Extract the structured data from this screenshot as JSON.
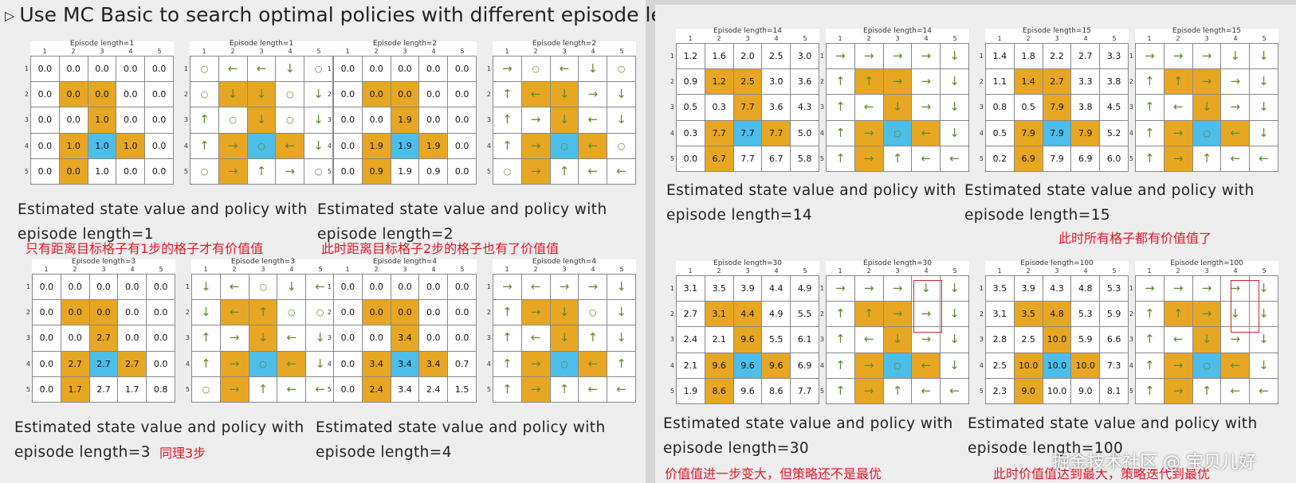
{
  "heading": {
    "bullet": "▷",
    "text": "Use MC Basic to search optimal policies with different episode lengths."
  },
  "axis_labels": [
    "1",
    "2",
    "3",
    "4",
    "5"
  ],
  "grid_layout": {
    "forbidden_cells": [
      [
        1,
        1
      ],
      [
        1,
        2
      ],
      [
        2,
        2
      ],
      [
        3,
        1
      ],
      [
        3,
        3
      ],
      [
        4,
        1
      ]
    ],
    "target_cell": [
      3,
      2
    ]
  },
  "panels": [
    {
      "id": "len1",
      "value_title": "Episode length=1",
      "policy_title": "Episode length=1",
      "values": [
        [
          "0.0",
          "0.0",
          "0.0",
          "0.0",
          "0.0"
        ],
        [
          "0.0",
          "0.0",
          "0.0",
          "0.0",
          "0.0"
        ],
        [
          "0.0",
          "0.0",
          "1.0",
          "0.0",
          "0.0"
        ],
        [
          "0.0",
          "1.0",
          "1.0",
          "1.0",
          "0.0"
        ],
        [
          "0.0",
          "0.0",
          "1.0",
          "0.0",
          "0.0"
        ]
      ],
      "policy": [
        [
          "o",
          "l",
          "l",
          "d",
          "o"
        ],
        [
          "o",
          "d",
          "d",
          "o",
          "d"
        ],
        [
          "u",
          "o",
          "d",
          "o",
          "d"
        ],
        [
          "u",
          "r",
          "o",
          "l",
          "d"
        ],
        [
          "o",
          "r",
          "u",
          "r",
          "o"
        ]
      ],
      "caption": "Estimated state value and policy with episode length=1",
      "note": "只有距离目标格子有1步的格子才有价值值"
    },
    {
      "id": "len2",
      "value_title": "Episode length=2",
      "policy_title": "Episode length=2",
      "values": [
        [
          "0.0",
          "0.0",
          "0.0",
          "0.0",
          "0.0"
        ],
        [
          "0.0",
          "0.0",
          "0.0",
          "0.0",
          "0.0"
        ],
        [
          "0.0",
          "0.0",
          "1.9",
          "0.0",
          "0.0"
        ],
        [
          "0.0",
          "1.9",
          "1.9",
          "1.9",
          "0.0"
        ],
        [
          "0.0",
          "0.9",
          "1.9",
          "0.9",
          "0.0"
        ]
      ],
      "policy": [
        [
          "r",
          "o",
          "l",
          "d",
          "o"
        ],
        [
          "u",
          "l",
          "d",
          "r",
          "d"
        ],
        [
          "u",
          "r",
          "d",
          "l",
          "d"
        ],
        [
          "u",
          "r",
          "o",
          "l",
          "o"
        ],
        [
          "o",
          "r",
          "u",
          "l",
          "l"
        ]
      ],
      "caption": "Estimated state value and policy with episode length=2",
      "note": "此时距离目标格子2步的格子也有了价值值"
    },
    {
      "id": "len3",
      "value_title": "Episode length=3",
      "policy_title": "Episode length=3",
      "values": [
        [
          "0.0",
          "0.0",
          "0.0",
          "0.0",
          "0.0"
        ],
        [
          "0.0",
          "0.0",
          "0.0",
          "0.0",
          "0.0"
        ],
        [
          "0.0",
          "0.0",
          "2.7",
          "0.0",
          "0.0"
        ],
        [
          "0.0",
          "2.7",
          "2.7",
          "2.7",
          "0.0"
        ],
        [
          "0.0",
          "1.7",
          "2.7",
          "1.7",
          "0.8"
        ]
      ],
      "policy": [
        [
          "d",
          "l",
          "o",
          "d",
          "l"
        ],
        [
          "d",
          "l",
          "u",
          "o",
          "o"
        ],
        [
          "u",
          "r",
          "d",
          "l",
          "d"
        ],
        [
          "u",
          "r",
          "o",
          "l",
          "d"
        ],
        [
          "o",
          "r",
          "u",
          "l",
          "l"
        ]
      ],
      "caption": "Estimated state value and policy with episode length=3",
      "note": "同理3步"
    },
    {
      "id": "len4",
      "value_title": "Episode length=4",
      "policy_title": "Episode length=4",
      "values": [
        [
          "0.0",
          "0.0",
          "0.0",
          "0.0",
          "0.0"
        ],
        [
          "0.0",
          "0.0",
          "0.0",
          "0.0",
          "0.0"
        ],
        [
          "0.0",
          "0.0",
          "3.4",
          "0.0",
          "0.0"
        ],
        [
          "0.0",
          "3.4",
          "3.4",
          "3.4",
          "0.7"
        ],
        [
          "0.0",
          "2.4",
          "3.4",
          "2.4",
          "1.5"
        ]
      ],
      "policy": [
        [
          "r",
          "l",
          "r",
          "r",
          "d"
        ],
        [
          "u",
          "r",
          "d",
          "o",
          "d"
        ],
        [
          "u",
          "l",
          "d",
          "u",
          "d"
        ],
        [
          "u",
          "r",
          "o",
          "l",
          "u"
        ],
        [
          "u",
          "r",
          "u",
          "l",
          "l"
        ]
      ],
      "caption": "Estimated state value and policy with episode length=4",
      "note": ""
    },
    {
      "id": "len14",
      "value_title": "Episode length=14",
      "policy_title": "Episode length=14",
      "values": [
        [
          "1.2",
          "1.6",
          "2.0",
          "2.5",
          "3.0"
        ],
        [
          "0.9",
          "1.2",
          "2.5",
          "3.0",
          "3.6"
        ],
        [
          "0.5",
          "0.3",
          "7.7",
          "3.6",
          "4.3"
        ],
        [
          "0.3",
          "7.7",
          "7.7",
          "7.7",
          "5.0"
        ],
        [
          "0.0",
          "6.7",
          "7.7",
          "6.7",
          "5.8"
        ]
      ],
      "policy": [
        [
          "r",
          "r",
          "r",
          "r",
          "d"
        ],
        [
          "u",
          "u",
          "r",
          "r",
          "d"
        ],
        [
          "u",
          "l",
          "d",
          "r",
          "d"
        ],
        [
          "u",
          "r",
          "o",
          "l",
          "d"
        ],
        [
          "u",
          "r",
          "u",
          "l",
          "l"
        ]
      ],
      "caption": "Estimated state value and policy with episode length=14",
      "note": ""
    },
    {
      "id": "len15",
      "value_title": "Episode length=15",
      "policy_title": "Episode length=15",
      "values": [
        [
          "1.4",
          "1.8",
          "2.2",
          "2.7",
          "3.3"
        ],
        [
          "1.1",
          "1.4",
          "2.7",
          "3.3",
          "3.8"
        ],
        [
          "0.8",
          "0.5",
          "7.9",
          "3.8",
          "4.5"
        ],
        [
          "0.5",
          "7.9",
          "7.9",
          "7.9",
          "5.2"
        ],
        [
          "0.2",
          "6.9",
          "7.9",
          "6.9",
          "6.0"
        ]
      ],
      "policy": [
        [
          "r",
          "r",
          "r",
          "d",
          "d"
        ],
        [
          "u",
          "u",
          "r",
          "r",
          "d"
        ],
        [
          "u",
          "l",
          "d",
          "r",
          "d"
        ],
        [
          "u",
          "r",
          "o",
          "l",
          "d"
        ],
        [
          "u",
          "r",
          "u",
          "l",
          "l"
        ]
      ],
      "caption": "Estimated state value and policy with episode length=15",
      "note": "此时所有格子都有价值值了"
    },
    {
      "id": "len30",
      "value_title": "Episode length=30",
      "policy_title": "Episode length=30",
      "values": [
        [
          "3.1",
          "3.5",
          "3.9",
          "4.4",
          "4.9"
        ],
        [
          "2.7",
          "3.1",
          "4.4",
          "4.9",
          "5.5"
        ],
        [
          "2.4",
          "2.1",
          "9.6",
          "5.5",
          "6.1"
        ],
        [
          "2.1",
          "9.6",
          "9.6",
          "9.6",
          "6.9"
        ],
        [
          "1.9",
          "8.6",
          "9.6",
          "8.6",
          "7.7"
        ]
      ],
      "policy": [
        [
          "r",
          "r",
          "r",
          "d",
          "d"
        ],
        [
          "u",
          "u",
          "r",
          "r",
          "d"
        ],
        [
          "u",
          "l",
          "d",
          "r",
          "d"
        ],
        [
          "u",
          "r",
          "o",
          "l",
          "d"
        ],
        [
          "u",
          "r",
          "u",
          "l",
          "l"
        ]
      ],
      "caption": "Estimated state value and policy with episode length=30",
      "note": "价值值进一步变大，但策略还不是最优"
    },
    {
      "id": "len100",
      "value_title": "Episode length=100",
      "policy_title": "Episode length=100",
      "values": [
        [
          "3.5",
          "3.9",
          "4.3",
          "4.8",
          "5.3"
        ],
        [
          "3.1",
          "3.5",
          "4.8",
          "5.3",
          "5.9"
        ],
        [
          "2.8",
          "2.5",
          "10.0",
          "5.9",
          "6.6"
        ],
        [
          "2.5",
          "10.0",
          "10.0",
          "10.0",
          "7.3"
        ],
        [
          "2.3",
          "9.0",
          "10.0",
          "9.0",
          "8.1"
        ]
      ],
      "policy": [
        [
          "r",
          "r",
          "r",
          "r",
          "d"
        ],
        [
          "u",
          "u",
          "r",
          "d",
          "d"
        ],
        [
          "u",
          "l",
          "d",
          "r",
          "d"
        ],
        [
          "u",
          "r",
          "o",
          "l",
          "d"
        ],
        [
          "u",
          "r",
          "u",
          "l",
          "l"
        ]
      ],
      "caption": "Estimated state value and policy with episode length=100",
      "note": "此时价值值达到最大，策略迭代到最优"
    }
  ],
  "watermark": "掘金技术社区 @ 宝贝儿好"
}
